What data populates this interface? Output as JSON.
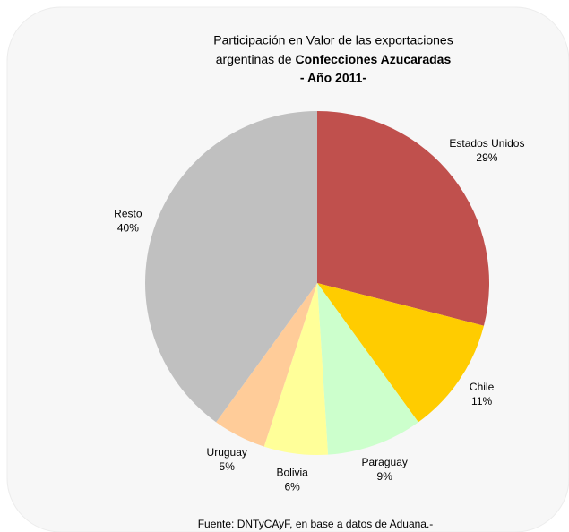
{
  "chart_data": {
    "type": "pie",
    "title": [
      "Participación en Valor de las exportaciones",
      "argentinas de",
      "Confecciones Azucaradas",
      "- Año 2011-"
    ],
    "categories": [
      "Estados Unidos",
      "Chile",
      "Paraguay",
      "Bolivia",
      "Uruguay",
      "Resto"
    ],
    "values": [
      29,
      11,
      9,
      6,
      5,
      40
    ],
    "value_labels": [
      "29%",
      "11%",
      "9%",
      "6%",
      "5%",
      "40%"
    ],
    "colors": [
      "#c0504d",
      "#ffcc00",
      "#ccffcc",
      "#ffff99",
      "#ffcc99",
      "#c0c0c0"
    ],
    "source": "Fuente: DNTyCAyF, en base a datos de Aduana.-"
  }
}
